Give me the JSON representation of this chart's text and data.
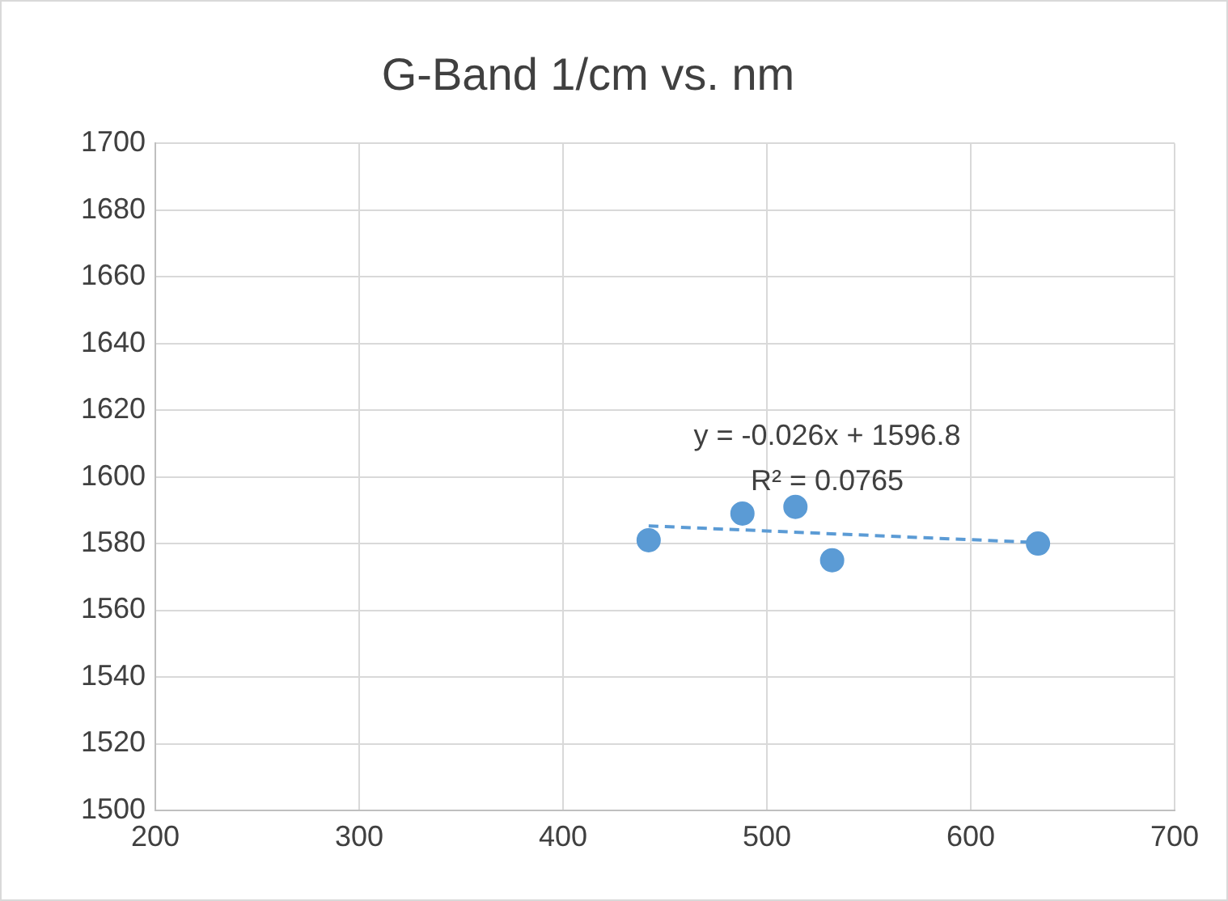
{
  "chart_data": {
    "type": "scatter",
    "title": "G-Band 1/cm vs. nm",
    "x": [
      442,
      488,
      514,
      532,
      633
    ],
    "series": [
      {
        "color": "#5b9bd5",
        "values": [
          1581,
          1589,
          1591,
          1575,
          1580
        ],
        "marker": "circle"
      },
      {
        "type": "line",
        "color": "#5b9bd5",
        "x": [
          442,
          633
        ],
        "values": [
          1585.3,
          1580.3
        ],
        "line_style": "dashed",
        "marker": "none"
      }
    ],
    "xlim": [
      200,
      700
    ],
    "xticks": [
      200,
      300,
      400,
      500,
      600,
      700
    ],
    "ylim": [
      1500,
      1700
    ],
    "yticks": [
      1500,
      1520,
      1540,
      1560,
      1580,
      1600,
      1620,
      1640,
      1660,
      1680,
      1700
    ],
    "grid": true,
    "legend": false,
    "annotations": [
      "y = -0.026x + 1596.8",
      "R² = 0.0765"
    ]
  }
}
